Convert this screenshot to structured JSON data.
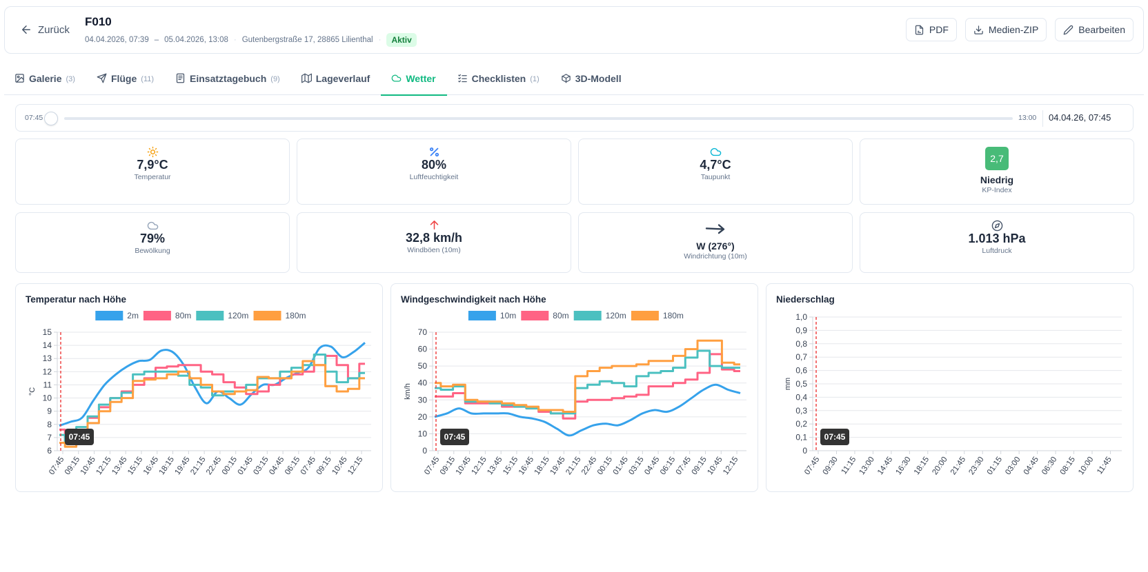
{
  "header": {
    "back_label": "Zurück",
    "title": "F010",
    "start": "04.04.2026, 07:39",
    "dash": "–",
    "end": "05.04.2026, 13:08",
    "address": "Gutenbergstraße 17, 28865 Lilienthal",
    "status": "Aktiv",
    "buttons": {
      "pdf": "PDF",
      "zip": "Medien-ZIP",
      "edit": "Bearbeiten"
    }
  },
  "tabs": [
    {
      "label": "Galerie",
      "count": "(3)"
    },
    {
      "label": "Flüge",
      "count": "(11)"
    },
    {
      "label": "Einsatztagebuch",
      "count": "(9)"
    },
    {
      "label": "Lageverlauf",
      "count": ""
    },
    {
      "label": "Wetter",
      "count": ""
    },
    {
      "label": "Checklisten",
      "count": "(1)"
    },
    {
      "label": "3D-Modell",
      "count": ""
    }
  ],
  "slider": {
    "start": "07:45",
    "end": "13:00",
    "value": "04.04.26, 07:45",
    "position": 0
  },
  "metrics": {
    "temperature": {
      "value": "7,9°C",
      "label": "Temperatur",
      "icon": "sun-icon",
      "color": "#f59e0b"
    },
    "humidity": {
      "value": "80%",
      "label": "Luftfeuchtigkeit",
      "icon": "percent-icon",
      "color": "#3b82f6"
    },
    "dewpoint": {
      "value": "4,7°C",
      "label": "Taupunkt",
      "icon": "cloud-icon",
      "color": "#06b6d4"
    },
    "kp": {
      "value": "2,7",
      "level": "Niedrig",
      "label": "KP-Index",
      "color": "#48bb78"
    },
    "clouds": {
      "value": "79%",
      "label": "Bewölkung",
      "icon": "cloud-icon",
      "color": "#94a3b8"
    },
    "gusts": {
      "value": "32,8 km/h",
      "label": "Windböen (10m)",
      "icon": "arrow-up-icon",
      "color": "#ef4444"
    },
    "direction": {
      "value": "W (276°)",
      "label": "Windrichtung (10m)",
      "icon": "arrow-right-icon",
      "color": "#334155"
    },
    "pressure": {
      "value": "1.013 hPa",
      "label": "Luftdruck",
      "icon": "compass-icon",
      "color": "#475569"
    }
  },
  "colors": {
    "accent": "#10b981",
    "blue": "#36a2eb",
    "pink": "#ff6384",
    "teal": "#4bc0c0",
    "orange": "#ff9f40",
    "marker": "#ef4444"
  },
  "chart_data": [
    {
      "type": "line",
      "title": "Temperatur nach Höhe",
      "ylabel": "°C",
      "ylim": [
        6,
        15
      ],
      "yticks": [
        "6",
        "7",
        "8",
        "9",
        "10",
        "11",
        "12",
        "13",
        "14",
        "15"
      ],
      "x_labels": [
        "07:45",
        "09:15",
        "10:45",
        "12:15",
        "13:45",
        "15:15",
        "16:45",
        "18:15",
        "19:45",
        "21:15",
        "22:45",
        "00:15",
        "01:45",
        "03:15",
        "04:45",
        "06:15",
        "07:45",
        "09:15",
        "10:45",
        "12:15"
      ],
      "marker": "07:45",
      "series": [
        {
          "name": "2m",
          "color": "#36a2eb",
          "step": false,
          "values": [
            7.9,
            8.2,
            8.5,
            9.8,
            11.0,
            11.8,
            12.4,
            12.8,
            12.9,
            13.6,
            13.5,
            12.5,
            10.8,
            9.6,
            10.5,
            10.0,
            9.5,
            10.3,
            11.0,
            11.0,
            11.5,
            11.9,
            12.3,
            13.8,
            13.9,
            13.1,
            13.5,
            14.2
          ]
        },
        {
          "name": "80m",
          "color": "#ff6384",
          "step": true,
          "values": [
            7.6,
            6.6,
            7.5,
            8.5,
            9.3,
            10.0,
            10.5,
            11.0,
            11.5,
            12.3,
            12.4,
            12.5,
            12.5,
            12.0,
            11.8,
            11.2,
            10.8,
            10.3,
            10.5,
            11.0,
            11.5,
            11.8,
            12.0,
            12.5,
            13.2,
            12.5,
            11.5,
            12.6
          ]
        },
        {
          "name": "120m",
          "color": "#4bc0c0",
          "step": true,
          "values": [
            7.2,
            6.7,
            7.8,
            8.6,
            9.5,
            10.0,
            10.4,
            11.8,
            12.0,
            12.0,
            12.0,
            11.7,
            11.0,
            10.8,
            10.2,
            10.5,
            10.5,
            11.0,
            11.5,
            11.5,
            12.0,
            12.3,
            12.5,
            13.3,
            12.0,
            11.2,
            11.5,
            11.9
          ]
        },
        {
          "name": "180m",
          "color": "#ff9f40",
          "step": true,
          "values": [
            6.6,
            6.3,
            7.0,
            8.1,
            9.0,
            9.7,
            10.0,
            11.3,
            11.4,
            11.5,
            11.8,
            12.0,
            11.5,
            11.0,
            10.5,
            10.3,
            10.5,
            10.6,
            11.6,
            11.5,
            11.5,
            12.0,
            12.8,
            12.5,
            10.9,
            10.5,
            10.7,
            11.5
          ]
        }
      ]
    },
    {
      "type": "line",
      "title": "Windgeschwindigkeit nach Höhe",
      "ylabel": "km/h",
      "ylim": [
        0,
        70
      ],
      "yticks": [
        "0",
        "10",
        "20",
        "30",
        "40",
        "50",
        "60",
        "70"
      ],
      "x_labels": [
        "07:45",
        "09:15",
        "10:45",
        "12:15",
        "13:45",
        "15:15",
        "16:45",
        "18:15",
        "19:45",
        "21:15",
        "22:45",
        "00:15",
        "01:45",
        "03:15",
        "04:45",
        "06:15",
        "07:45",
        "09:15",
        "10:45",
        "12:15"
      ],
      "marker": "07:45",
      "series": [
        {
          "name": "10m",
          "color": "#36a2eb",
          "step": false,
          "values": [
            20,
            22,
            25,
            22,
            22,
            22,
            22,
            20,
            19,
            17,
            13,
            9,
            12,
            15,
            16,
            15,
            18,
            22,
            24,
            23,
            26,
            31,
            36,
            39,
            36,
            34
          ]
        },
        {
          "name": "80m",
          "color": "#ff6384",
          "step": true,
          "values": [
            32,
            32,
            34,
            28,
            28,
            28,
            26,
            26,
            25,
            23,
            22,
            19,
            29,
            30,
            30,
            31,
            32,
            33,
            38,
            38,
            40,
            42,
            46,
            57,
            48,
            47
          ]
        },
        {
          "name": "120m",
          "color": "#4bc0c0",
          "step": true,
          "values": [
            37,
            36,
            38,
            29,
            29,
            28,
            27,
            26,
            25,
            24,
            22,
            22,
            37,
            39,
            41,
            40,
            38,
            44,
            46,
            47,
            49,
            55,
            59,
            50,
            49,
            49
          ]
        },
        {
          "name": "180m",
          "color": "#ff9f40",
          "step": true,
          "values": [
            40,
            38,
            39,
            30,
            29,
            29,
            28,
            27,
            26,
            24,
            24,
            23,
            44,
            47,
            49,
            50,
            50,
            51,
            53,
            53,
            56,
            60,
            65,
            65,
            52,
            51
          ]
        }
      ]
    },
    {
      "type": "line",
      "title": "Niederschlag",
      "ylabel": "mm",
      "ylim": [
        0,
        1.0
      ],
      "yticks": [
        "0",
        "0,1",
        "0,2",
        "0,3",
        "0,4",
        "0,5",
        "0,6",
        "0,7",
        "0,8",
        "0,9",
        "1,0"
      ],
      "x_labels": [
        "07:45",
        "09:30",
        "11:15",
        "13:00",
        "14:45",
        "16:30",
        "18:15",
        "20:00",
        "21:45",
        "23:30",
        "01:15",
        "03:00",
        "04:45",
        "06:30",
        "08:15",
        "10:00",
        "11:45"
      ],
      "marker": "07:45",
      "series": []
    }
  ]
}
